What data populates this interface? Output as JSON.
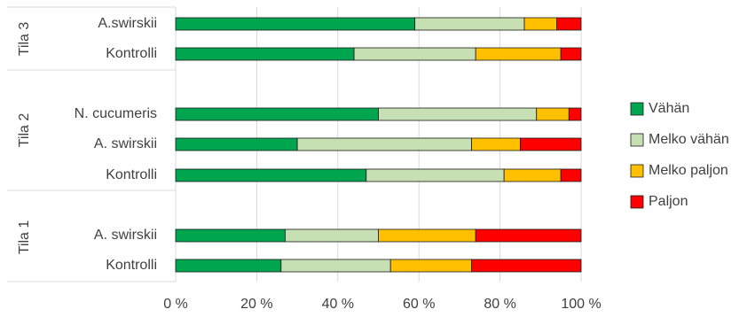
{
  "chart_data": {
    "type": "bar",
    "orientation": "horizontal",
    "stacked": "percent",
    "groups": [
      {
        "label": "Tila 3",
        "categories": [
          "A.swirskii",
          "Kontrolli"
        ]
      },
      {
        "label": "Tila 2",
        "categories": [
          "N. cucumeris",
          "A. swirskii",
          "Kontrolli"
        ]
      },
      {
        "label": "Tila 1",
        "categories": [
          "A. swirskii",
          "Kontrolli"
        ]
      }
    ],
    "series": [
      {
        "name": "Vähän",
        "color": "#00a550",
        "values": [
          59,
          44,
          50,
          30,
          47,
          27,
          26
        ]
      },
      {
        "name": "Melko vähän",
        "color": "#c6e0b4",
        "values": [
          27,
          30,
          39,
          43,
          34,
          23,
          27
        ]
      },
      {
        "name": "Melko paljon",
        "color": "#ffc000",
        "values": [
          8,
          21,
          8,
          12,
          14,
          24,
          20
        ]
      },
      {
        "name": "Paljon",
        "color": "#ff0000",
        "values": [
          6,
          5,
          3,
          15,
          5,
          26,
          27
        ]
      }
    ],
    "xlim": [
      0,
      100
    ],
    "xticks": [
      "0 %",
      "20 %",
      "40 %",
      "60 %",
      "80 %",
      "100 %"
    ],
    "grid": true,
    "legend_position": "right"
  }
}
